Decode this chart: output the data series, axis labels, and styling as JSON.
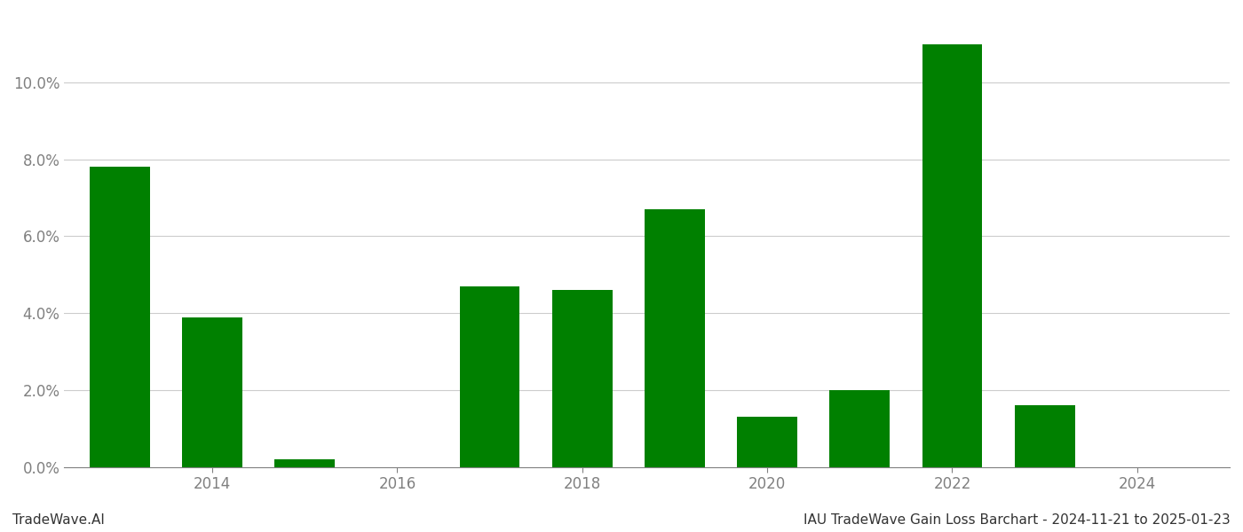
{
  "years": [
    2013,
    2014,
    2015,
    2016,
    2017,
    2018,
    2019,
    2020,
    2021,
    2022,
    2023,
    2024
  ],
  "values": [
    0.078,
    0.039,
    0.002,
    0.0,
    0.047,
    0.046,
    0.067,
    0.013,
    0.02,
    0.11,
    0.016,
    0.0
  ],
  "bar_color": "#008000",
  "background_color": "#ffffff",
  "grid_color": "#cccccc",
  "text_color": "#808080",
  "footer_left": "TradeWave.AI",
  "footer_right": "IAU TradeWave Gain Loss Barchart - 2024-11-21 to 2025-01-23",
  "bar_width": 0.65,
  "xtick_years": [
    2014,
    2016,
    2018,
    2020,
    2022,
    2024
  ],
  "ytick_values": [
    0.0,
    0.02,
    0.04,
    0.06,
    0.08,
    0.1
  ],
  "ylim_min": 0.0,
  "ylim_max": 0.118,
  "xlim_min": 2012.4,
  "xlim_max": 2025.0
}
